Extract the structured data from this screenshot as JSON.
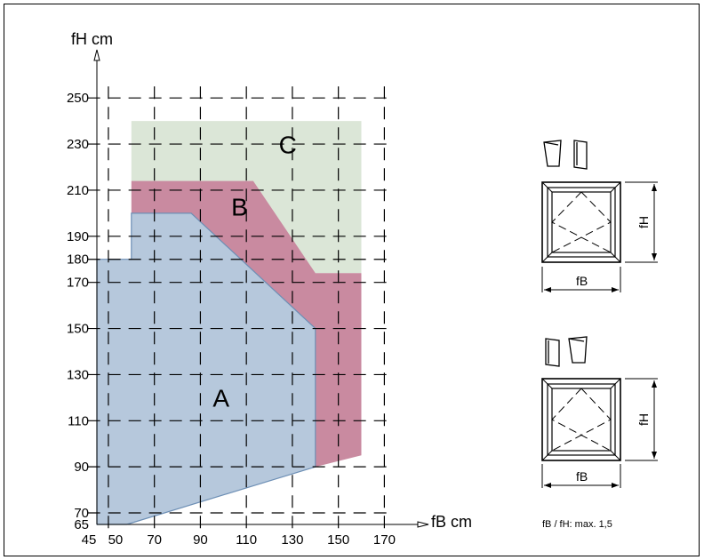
{
  "chart_data": {
    "type": "area",
    "xlabel": "fB cm",
    "ylabel": "fH cm",
    "x_ticks": [
      45,
      50,
      70,
      90,
      110,
      130,
      150,
      170
    ],
    "y_ticks": [
      65,
      70,
      90,
      110,
      130,
      150,
      170,
      180,
      190,
      210,
      230,
      250
    ],
    "xlim": [
      45,
      171
    ],
    "ylim": [
      65,
      252
    ],
    "grid": true,
    "regions": [
      {
        "label": "C",
        "color": "#dbe6d7",
        "polygon": [
          [
            60,
            240
          ],
          [
            160,
            240
          ],
          [
            160,
            174
          ],
          [
            140,
            174
          ],
          [
            60,
            214
          ]
        ]
      },
      {
        "label": "B",
        "color": "#c98aa0",
        "polygon": [
          [
            60,
            214
          ],
          [
            113,
            214
          ],
          [
            140,
            174
          ],
          [
            160,
            174
          ],
          [
            160,
            95
          ],
          [
            140,
            90
          ],
          [
            60,
            90
          ]
        ]
      },
      {
        "label": "A",
        "color": "#b6c8dc",
        "polygon": [
          [
            45,
            180
          ],
          [
            60,
            180
          ],
          [
            60,
            200
          ],
          [
            86,
            200
          ],
          [
            140,
            150
          ],
          [
            140,
            90
          ],
          [
            58,
            65
          ],
          [
            45,
            65
          ]
        ]
      }
    ],
    "region_label_positions": [
      {
        "label": "C",
        "x": 128,
        "y": 226
      },
      {
        "label": "B",
        "x": 107,
        "y": 199
      },
      {
        "label": "A",
        "x": 99,
        "y": 116
      }
    ]
  },
  "windows": [
    {
      "fB": "fB",
      "fH": "fH"
    },
    {
      "fB": "fB",
      "fH": "fH"
    }
  ],
  "note": "fB / fH: max. 1,5"
}
